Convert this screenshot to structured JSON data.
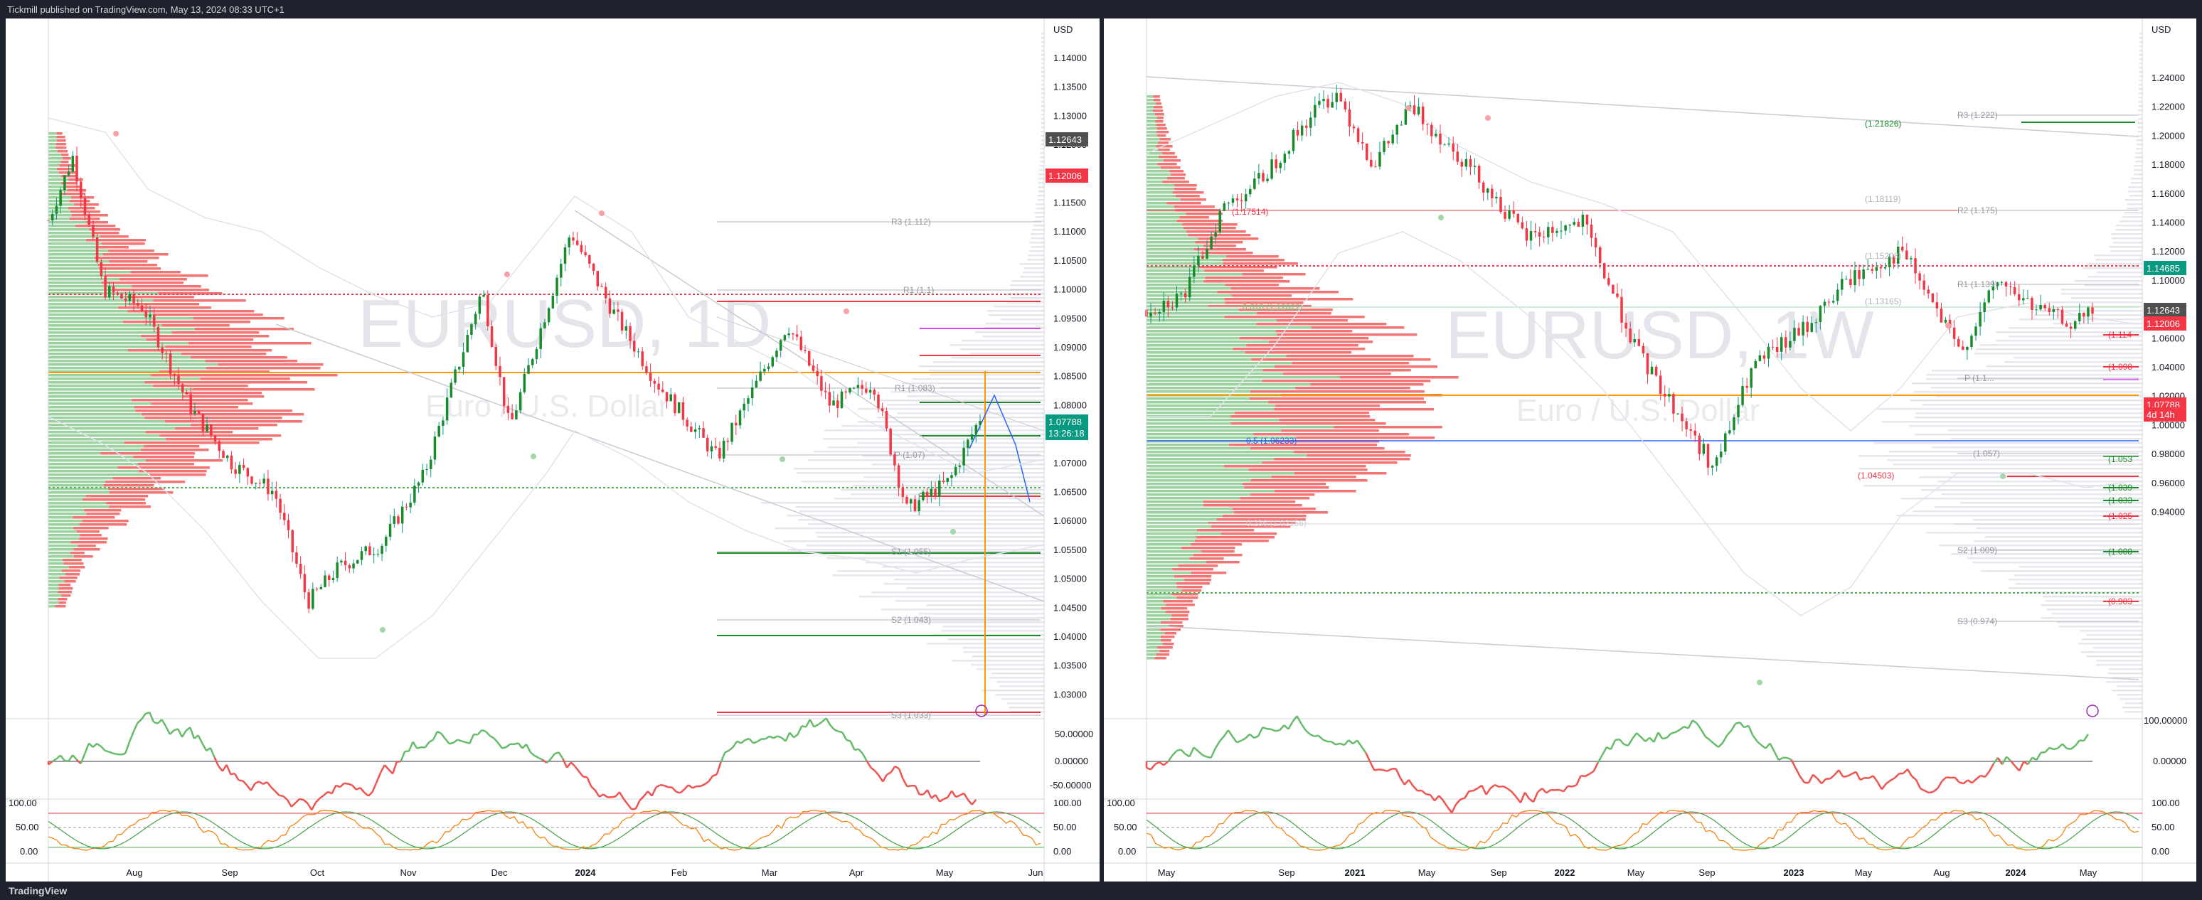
{
  "header": {
    "published": "Tickmill published on TradingView.com, May 13, 2024 08:33 UTC+1"
  },
  "footer": {
    "logo": "TradingView"
  },
  "left_chart": {
    "symbol_watermark": "EURUSD, 1D",
    "name_watermark": "Euro / U.S. Dollar",
    "currency": "USD",
    "price_ticks": [
      "1.14000",
      "1.13500",
      "1.13000",
      "1.12500",
      "1.12000",
      "1.11500",
      "1.11000",
      "1.10500",
      "1.10000",
      "1.09500",
      "1.09000",
      "1.08500",
      "1.08000",
      "1.07500",
      "1.07000",
      "1.06500",
      "1.06000",
      "1.05500",
      "1.05000",
      "1.04500",
      "1.04000",
      "1.03500",
      "1.03000"
    ],
    "time_ticks": [
      "Aug",
      "Sep",
      "Oct",
      "Nov",
      "Dec",
      "2024",
      "Feb",
      "Mar",
      "Apr",
      "May",
      "Jun"
    ],
    "badges": [
      {
        "label": "1.12643",
        "color": "#505050"
      },
      {
        "label": "1.12006",
        "color": "#f23645"
      },
      {
        "label": "1.07788",
        "color": "#089981"
      },
      {
        "label": "13:26:18",
        "color": "#089981"
      }
    ],
    "pivots": [
      "R3 (1.112)",
      "R1 (1.1)",
      "R1 (1.083)",
      "P (1.07)",
      "S1 (1.055)",
      "S2 (1.043)",
      "S3 (1.033)"
    ],
    "osc_ticks": [
      "50.00000",
      "0.00000",
      "-50.00000"
    ],
    "stoch_ticks": [
      "100.00",
      "50.00",
      "0.00"
    ]
  },
  "right_chart": {
    "symbol_watermark": "EURUSD, 1W",
    "name_watermark": "Euro / U.S. Dollar",
    "currency": "USD",
    "price_ticks": [
      "1.24000",
      "1.22000",
      "1.20000",
      "1.18000",
      "1.16000",
      "1.14000",
      "1.12000",
      "1.10000",
      "1.08000",
      "1.06000",
      "1.04000",
      "1.02000",
      "1.00000",
      "0.98000",
      "0.96000",
      "0.94000"
    ],
    "time_ticks": [
      "May",
      "Sep",
      "2021",
      "May",
      "Sep",
      "2022",
      "May",
      "Sep",
      "2023",
      "May",
      "Aug",
      "2024",
      "May"
    ],
    "badges": [
      {
        "label": "1.14685",
        "color": "#089981"
      },
      {
        "label": "1.12643",
        "color": "#505050"
      },
      {
        "label": "1.12006",
        "color": "#f23645"
      },
      {
        "label": "1.07788",
        "color": "#f23645"
      },
      {
        "label": "4d 14h",
        "color": "#f23645"
      }
    ],
    "levels": [
      "R3 (1.222)",
      "(1.21826)",
      "(1.18119)",
      "R2 (1.175)",
      "(1.15208)",
      "R1 (1.139)",
      "(1.13165)",
      "(1.11745)",
      "(1.17514)",
      "0.618 (1.12822)",
      "P (1.1...",
      "0.5 (1.06233)",
      "(1.04503)",
      "(1.057)",
      "0.236 (1.02156)",
      "S2 (1.009)",
      "S3 (0.974)",
      "(1.114",
      "(1.098",
      "(1.053",
      "(1.039",
      "(1.033",
      "(1.025",
      "(1.008",
      "(0.983"
    ],
    "osc_ticks": [
      "100.00000",
      "0.00000"
    ],
    "stoch_ticks": [
      "100.00",
      "50.00",
      "0.00"
    ]
  },
  "chart_data": [
    {
      "type": "candlestick",
      "title": "EURUSD, 1D",
      "subtitle": "Euro / U.S. Dollar",
      "x_range": [
        "2023-07",
        "2024-06"
      ],
      "ylim": [
        1.025,
        1.145
      ],
      "close_trend": [
        {
          "t": "2023-07-10",
          "c": 1.112
        },
        {
          "t": "2023-07-18",
          "c": 1.123
        },
        {
          "t": "2023-07-28",
          "c": 1.1
        },
        {
          "t": "2023-08-10",
          "c": 1.097
        },
        {
          "t": "2023-08-25",
          "c": 1.08
        },
        {
          "t": "2023-09-08",
          "c": 1.07
        },
        {
          "t": "2023-09-22",
          "c": 1.065
        },
        {
          "t": "2023-10-03",
          "c": 1.046
        },
        {
          "t": "2023-10-13",
          "c": 1.052
        },
        {
          "t": "2023-10-27",
          "c": 1.056
        },
        {
          "t": "2023-11-10",
          "c": 1.068
        },
        {
          "t": "2023-11-29",
          "c": 1.1
        },
        {
          "t": "2023-12-08",
          "c": 1.076
        },
        {
          "t": "2023-12-28",
          "c": 1.11
        },
        {
          "t": "2024-01-10",
          "c": 1.097
        },
        {
          "t": "2024-01-25",
          "c": 1.084
        },
        {
          "t": "2024-02-14",
          "c": 1.071
        },
        {
          "t": "2024-03-08",
          "c": 1.094
        },
        {
          "t": "2024-03-22",
          "c": 1.08
        },
        {
          "t": "2024-04-05",
          "c": 1.084
        },
        {
          "t": "2024-04-16",
          "c": 1.062
        },
        {
          "t": "2024-04-30",
          "c": 1.067
        },
        {
          "t": "2024-05-10",
          "c": 1.0779
        }
      ],
      "last_price": 1.07788
    },
    {
      "type": "candlestick",
      "title": "EURUSD, 1W",
      "subtitle": "Euro / U.S. Dollar",
      "x_range": [
        "2020-03",
        "2024-05"
      ],
      "ylim": [
        0.935,
        1.245
      ],
      "close_trend": [
        {
          "t": "2020-03",
          "c": 1.08
        },
        {
          "t": "2020-05",
          "c": 1.09
        },
        {
          "t": "2020-07",
          "c": 1.15
        },
        {
          "t": "2020-09",
          "c": 1.17
        },
        {
          "t": "2020-12",
          "c": 1.22
        },
        {
          "t": "2021-01",
          "c": 1.23
        },
        {
          "t": "2021-03",
          "c": 1.18
        },
        {
          "t": "2021-05",
          "c": 1.22
        },
        {
          "t": "2021-08",
          "c": 1.18
        },
        {
          "t": "2021-11",
          "c": 1.13
        },
        {
          "t": "2022-02",
          "c": 1.14
        },
        {
          "t": "2022-05",
          "c": 1.05
        },
        {
          "t": "2022-07",
          "c": 1.01
        },
        {
          "t": "2022-09",
          "c": 0.97
        },
        {
          "t": "2022-11",
          "c": 1.04
        },
        {
          "t": "2023-02",
          "c": 1.07
        },
        {
          "t": "2023-04",
          "c": 1.1
        },
        {
          "t": "2023-07",
          "c": 1.12
        },
        {
          "t": "2023-10",
          "c": 1.05
        },
        {
          "t": "2023-12",
          "c": 1.1
        },
        {
          "t": "2024-02",
          "c": 1.08
        },
        {
          "t": "2024-04",
          "c": 1.07
        },
        {
          "t": "2024-05",
          "c": 1.078
        }
      ],
      "last_price": 1.07788
    }
  ]
}
